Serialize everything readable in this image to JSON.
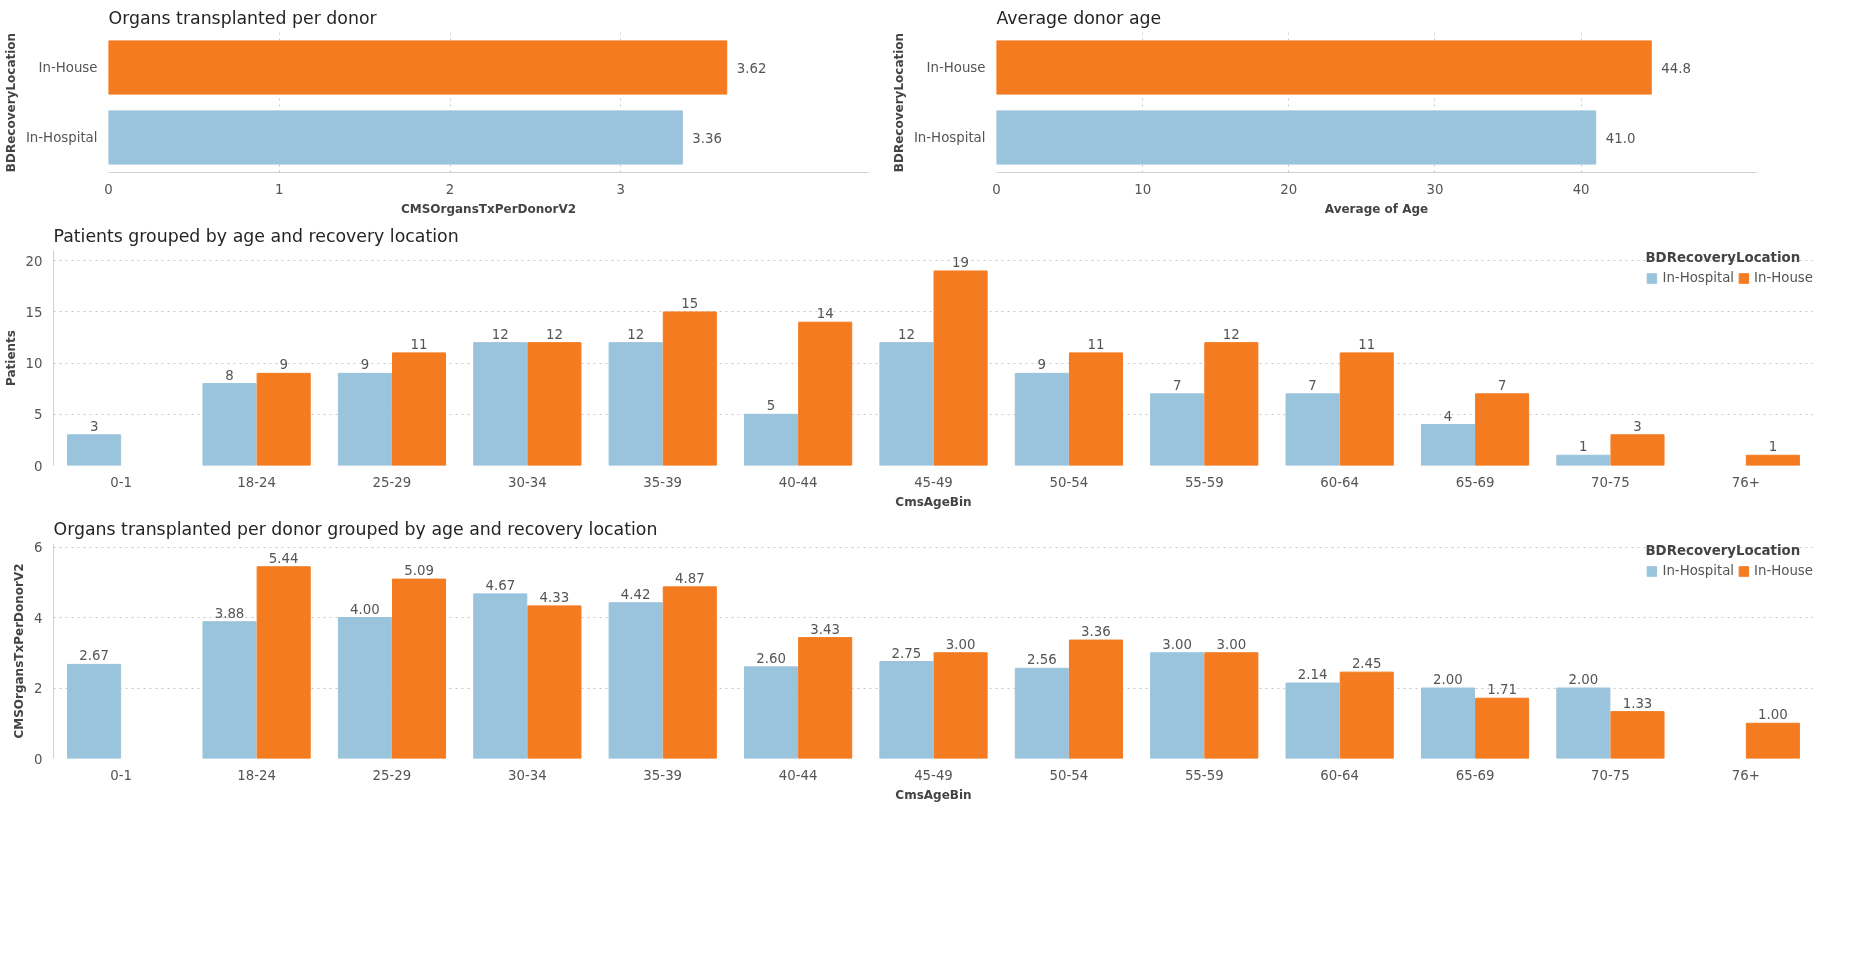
{
  "chart_data": [
    {
      "type": "bar",
      "title": "Organs transplanted per donor",
      "orientation": "horizontal",
      "categories": [
        "In-House",
        "In-Hospital"
      ],
      "values": [
        3.62,
        3.36
      ],
      "colors": [
        "#f47b20",
        "#9ac3dc"
      ],
      "xlim": [
        0,
        4.45
      ],
      "xticks": [
        0,
        1,
        2,
        3
      ],
      "xlabel": "CMSOrgansTxPerDonorV2",
      "ylabel": "BDRecoveryLocation",
      "grid": "x",
      "data_labels": true
    },
    {
      "type": "bar",
      "title": "Average donor age",
      "orientation": "horizontal",
      "categories": [
        "In-House",
        "In-Hospital"
      ],
      "values": [
        44.8,
        41.0
      ],
      "value_labels": [
        "44.8",
        "41.0"
      ],
      "colors": [
        "#f47b20",
        "#9ac3dc"
      ],
      "xlim": [
        0,
        52
      ],
      "xticks": [
        0,
        10,
        20,
        30,
        40
      ],
      "xlabel": "Average of Age",
      "ylabel": "BDRecoveryLocation",
      "grid": "x"
    },
    {
      "type": "bar",
      "title": "Patients grouped by age and recovery location",
      "legend_title": "BDRecoveryLocation",
      "legend": "top right",
      "categories": [
        "0-1",
        "18-24",
        "25-29",
        "30-34",
        "35-39",
        "40-44",
        "45-49",
        "50-54",
        "55-59",
        "60-64",
        "65-69",
        "70-75",
        "76+"
      ],
      "xlabel": "CmsAgeBin",
      "ylabel": "Patients",
      "ylim": [
        0,
        21
      ],
      "yticks": [
        0,
        5,
        10,
        15,
        20
      ],
      "grid": "y",
      "data_labels": true,
      "series": [
        {
          "name": "In-Hospital",
          "color": "#9ac3dc",
          "values": [
            3,
            8,
            9,
            12,
            12,
            5,
            12,
            9,
            7,
            7,
            4,
            1,
            null
          ]
        },
        {
          "name": "In-House",
          "color": "#f47b20",
          "values": [
            null,
            9,
            11,
            12,
            15,
            14,
            19,
            11,
            12,
            11,
            7,
            3,
            1
          ]
        }
      ]
    },
    {
      "type": "bar",
      "title": "Organs transplanted per donor grouped by age and recovery location",
      "legend_title": "BDRecoveryLocation",
      "legend": "top right",
      "categories": [
        "0-1",
        "18-24",
        "25-29",
        "30-34",
        "35-39",
        "40-44",
        "45-49",
        "50-54",
        "55-59",
        "60-64",
        "65-69",
        "70-75",
        "76+"
      ],
      "xlabel": "CmsAgeBin",
      "ylabel": "CMSOrgansTxPerDonorV2",
      "ylim": [
        0,
        6.1
      ],
      "yticks": [
        0,
        2,
        4,
        6
      ],
      "grid": "y",
      "series": [
        {
          "name": "In-Hospital",
          "color": "#9ac3dc",
          "values": [
            2.67,
            3.88,
            4.0,
            4.67,
            4.42,
            2.6,
            2.75,
            2.56,
            3.0,
            2.14,
            2.0,
            2.0,
            null
          ],
          "value_labels": [
            "2.67",
            "3.88",
            "4.00",
            "4.67",
            "4.42",
            "2.60",
            "2.75",
            "2.56",
            "3.00",
            "2.14",
            "2.00",
            "2.00",
            null
          ]
        },
        {
          "name": "In-House",
          "color": "#f47b20",
          "values": [
            null,
            5.44,
            5.09,
            4.33,
            4.87,
            3.43,
            3.0,
            3.36,
            3.0,
            2.45,
            1.71,
            1.33,
            1.0
          ],
          "value_labels": [
            null,
            "5.44",
            "5.09",
            "4.33",
            "4.87",
            "3.43",
            "3.00",
            "3.36",
            "3.00",
            "2.45",
            "1.71",
            "1.33",
            "1.00"
          ]
        }
      ]
    }
  ]
}
